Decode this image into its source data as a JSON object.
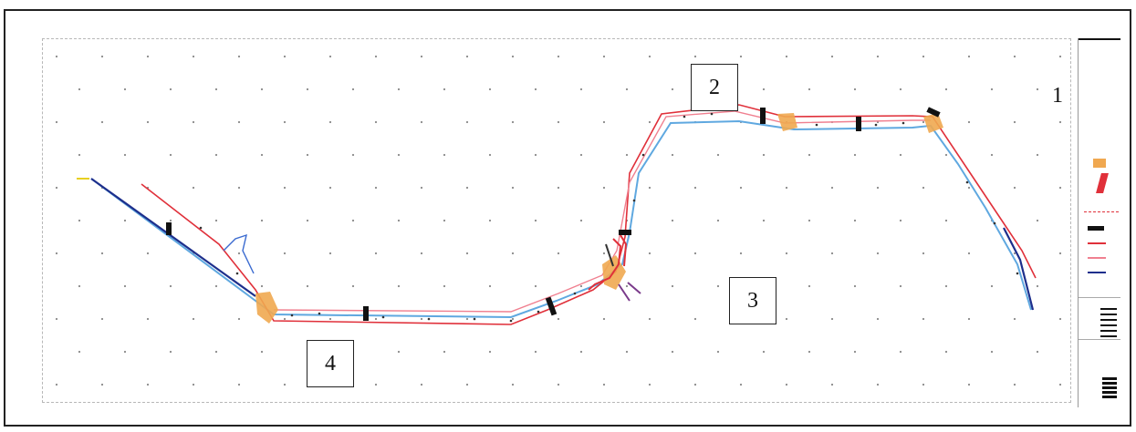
{
  "labels": {
    "site_1": "1",
    "site_2": "2",
    "site_3": "3",
    "site_4": "4"
  },
  "colors": {
    "dark_route": "#1d2f8c",
    "red_route": "#e0303a",
    "pink_route": "#f08090",
    "light_route": "#5fa8e0",
    "junction": "#f0a850",
    "hatch": "#111111",
    "grid_dot": "#888888"
  },
  "legend": {
    "swatches": [
      "junction-swatch",
      "red-marker-swatch",
      "black-bar-swatch",
      "red-line-swatch",
      "pink-line-swatch",
      "blue-line-swatch"
    ]
  }
}
